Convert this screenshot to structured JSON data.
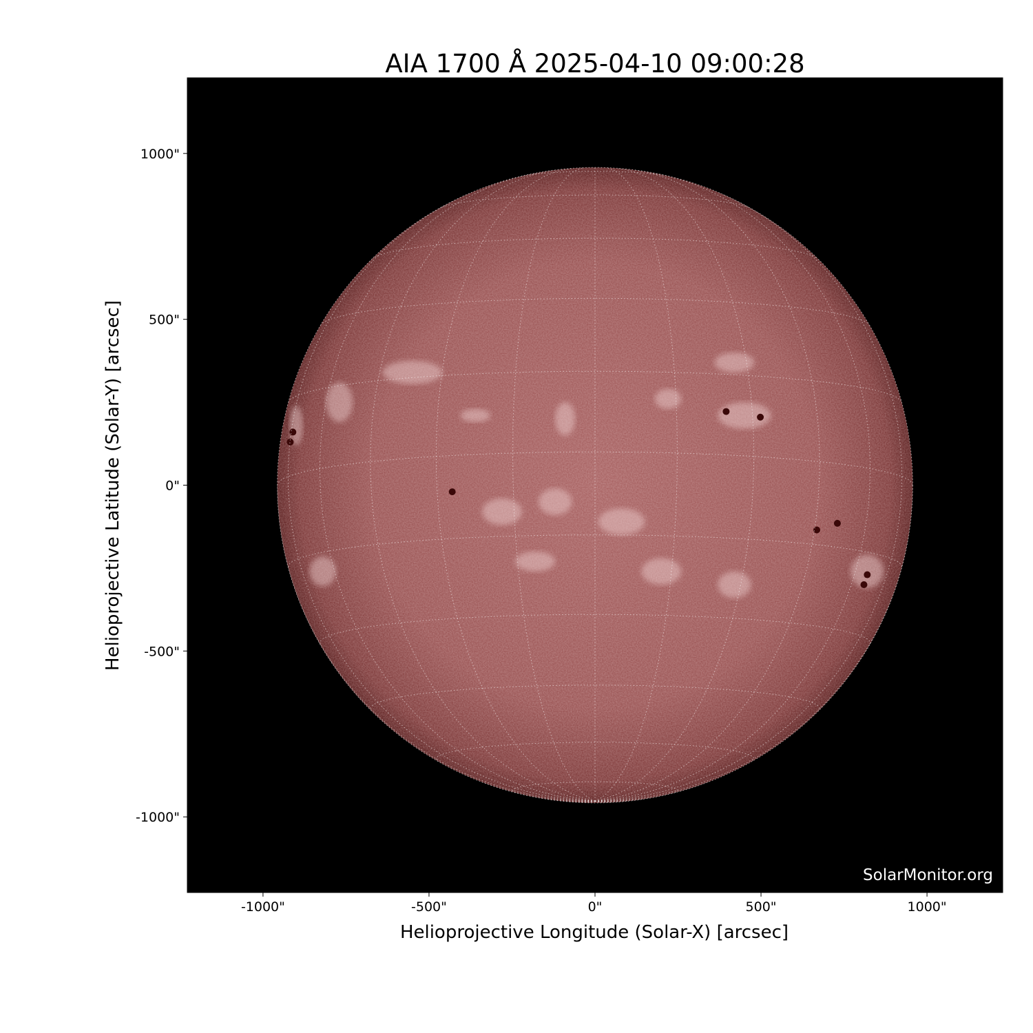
{
  "chart_data": {
    "type": "heatmap",
    "title": "AIA 1700 Å 2025-04-10 09:00:28",
    "xlabel": "Helioprojective Longitude (Solar-X) [arcsec]",
    "ylabel": "Helioprojective Latitude (Solar-Y) [arcsec]",
    "xlim": [
      -1228,
      1228
    ],
    "ylim": [
      -1228,
      1228
    ],
    "xticks": [
      -1000,
      -500,
      0,
      500,
      1000
    ],
    "yticks": [
      -1000,
      -500,
      0,
      500,
      1000
    ],
    "xtick_labels": [
      "-1000\"",
      "-500\"",
      "0\"",
      "500\"",
      "1000\""
    ],
    "ytick_labels": [
      "-1000\"",
      "-500\"",
      "0\"",
      "500\"",
      "1000\""
    ],
    "solar_radius_arcsec": 957,
    "grid_spacing_deg": 15,
    "background_color": "#000000",
    "disk_center_color": "#a86262",
    "disk_limb_color": "#5e2222",
    "plage_color": "#f2d6d6",
    "sunspot_color": "#3a0808",
    "sunspots": [
      [
        -430,
        -20
      ],
      [
        -918,
        130
      ],
      [
        -910,
        160
      ],
      [
        668,
        -135
      ],
      [
        730,
        -115
      ],
      [
        395,
        222
      ],
      [
        498,
        205
      ],
      [
        820,
        -270
      ],
      [
        810,
        -300
      ]
    ],
    "plages": [
      [
        -550,
        340,
        90,
        35
      ],
      [
        -360,
        210,
        45,
        20
      ],
      [
        -770,
        250,
        40,
        60
      ],
      [
        -90,
        200,
        30,
        50
      ],
      [
        420,
        370,
        60,
        30
      ],
      [
        450,
        210,
        80,
        40
      ],
      [
        -280,
        -80,
        60,
        40
      ],
      [
        80,
        -110,
        70,
        40
      ],
      [
        -120,
        -50,
        50,
        40
      ],
      [
        -820,
        -260,
        40,
        45
      ],
      [
        820,
        -260,
        50,
        50
      ],
      [
        -900,
        180,
        20,
        60
      ],
      [
        -180,
        -230,
        60,
        30
      ],
      [
        200,
        -260,
        60,
        40
      ],
      [
        420,
        -300,
        50,
        40
      ],
      [
        220,
        260,
        40,
        30
      ]
    ],
    "watermark": "SolarMonitor.org"
  }
}
